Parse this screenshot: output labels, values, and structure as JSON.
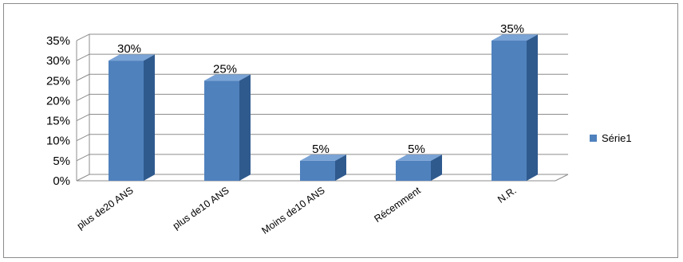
{
  "chart_data": {
    "type": "bar",
    "title": "",
    "xlabel": "",
    "ylabel": "",
    "categories": [
      "plus de20 ANS",
      "plus de10 ANS",
      "Moins  de10 ANS",
      "Récemment",
      "N.R."
    ],
    "series": [
      {
        "name": "Série1",
        "values": [
          30,
          25,
          5,
          5,
          35
        ],
        "labels": [
          "30%",
          "25%",
          "5%",
          "5%",
          "35%"
        ]
      }
    ],
    "ylim": [
      0,
      35
    ],
    "yticks": [
      "0%",
      "5%",
      "10%",
      "15%",
      "20%",
      "25%",
      "30%",
      "35%"
    ],
    "grid": true,
    "three_d": true,
    "legend_position": "right",
    "colors": {
      "bar_front": "#4f81bd",
      "bar_side": "#2f5a8e",
      "bar_top": "#7aa3d6",
      "grid": "#8c8c8c"
    }
  }
}
